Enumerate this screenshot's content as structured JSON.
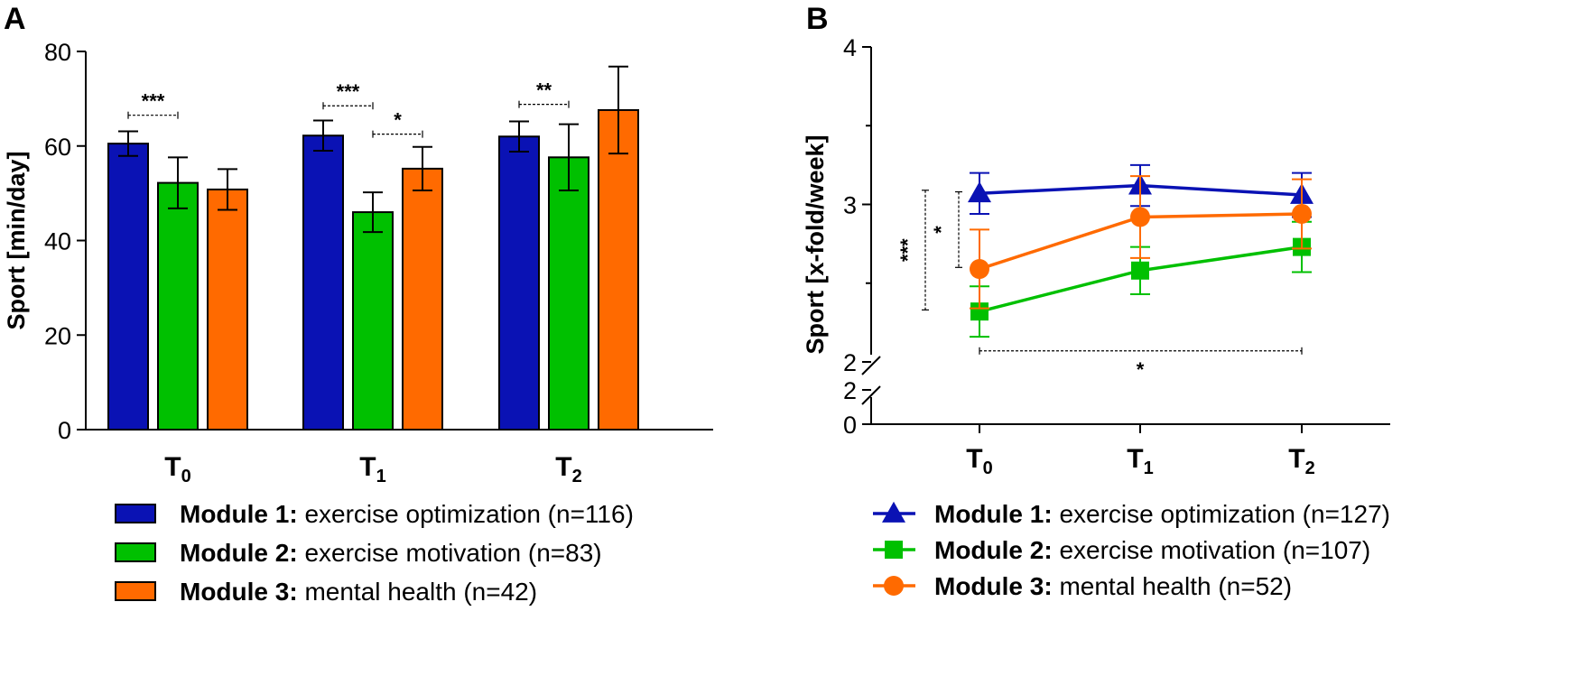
{
  "colors": {
    "module1": "#0a12b4",
    "module2": "#00c000",
    "module3": "#ff6a00"
  },
  "chart_data": [
    {
      "panel_label": "A",
      "type": "bar",
      "title": "",
      "ylabel": "Sport [min/day]",
      "ylim": [
        0,
        80
      ],
      "yticks": [
        "0",
        "20",
        "40",
        "60",
        "80"
      ],
      "categories": [
        {
          "base": "T",
          "sub": "0"
        },
        {
          "base": "T",
          "sub": "1"
        },
        {
          "base": "T",
          "sub": "2"
        }
      ],
      "series": [
        {
          "name_bold": "Module 1:",
          "name_rest": " exercise optimization (n=116)",
          "color_key": "module1",
          "values": [
            60.5,
            62.2,
            62.0
          ],
          "err": [
            2.6,
            3.2,
            3.2
          ]
        },
        {
          "name_bold": "Module 2:",
          "name_rest": " exercise motivation (n=83)",
          "color_key": "module2",
          "values": [
            52.2,
            46.0,
            57.6
          ],
          "err": [
            5.4,
            4.2,
            7.0
          ]
        },
        {
          "name_bold": "Module 3:",
          "name_rest": " mental health (n=42)",
          "color_key": "module3",
          "values": [
            50.8,
            55.2,
            67.6
          ],
          "err": [
            4.3,
            4.6,
            9.2
          ]
        }
      ],
      "annotations": [
        {
          "text": "***",
          "category": 0,
          "from_series": 0,
          "to_series": 1,
          "y": 66.5
        },
        {
          "text": "***",
          "category": 1,
          "from_series": 0,
          "to_series": 1,
          "y": 68.5
        },
        {
          "text": "*",
          "category": 1,
          "from_series": 1,
          "to_series": 2,
          "y": 62.5
        },
        {
          "text": "**",
          "category": 2,
          "from_series": 0,
          "to_series": 1,
          "y": 68.8
        }
      ],
      "legend": "bottom"
    },
    {
      "panel_label": "B",
      "type": "line",
      "title": "",
      "ylabel": "Sport [x-fold/week]",
      "ylim": [
        2,
        4
      ],
      "yticks_upper": [
        "2",
        "3",
        "4"
      ],
      "yticks_lower": [
        "0",
        "2"
      ],
      "axis_break": true,
      "x": [
        {
          "base": "T",
          "sub": "0"
        },
        {
          "base": "T",
          "sub": "1"
        },
        {
          "base": "T",
          "sub": "2"
        }
      ],
      "series": [
        {
          "name_bold": "Module 1:",
          "name_rest": " exercise optimization (n=127)",
          "color_key": "module1",
          "marker": "triangle",
          "values": [
            3.07,
            3.12,
            3.06
          ],
          "err": [
            0.13,
            0.13,
            0.14
          ]
        },
        {
          "name_bold": "Module 2:",
          "name_rest": " exercise motivation (n=107)",
          "color_key": "module2",
          "marker": "square",
          "values": [
            2.32,
            2.58,
            2.73
          ],
          "err": [
            0.16,
            0.15,
            0.16
          ]
        },
        {
          "name_bold": "Module 3:",
          "name_rest": " mental health (n=52)",
          "color_key": "module3",
          "marker": "circle",
          "values": [
            2.59,
            2.92,
            2.94
          ],
          "err": [
            0.25,
            0.26,
            0.22
          ]
        }
      ],
      "annotations": [
        {
          "text": "***",
          "orientation": "vertical",
          "from": 3.09,
          "to": 2.33
        },
        {
          "text": "*",
          "orientation": "vertical",
          "from": 3.08,
          "to": 2.6
        },
        {
          "text": "*",
          "orientation": "horizontal",
          "y": 2.07
        }
      ],
      "legend": "bottom"
    }
  ]
}
